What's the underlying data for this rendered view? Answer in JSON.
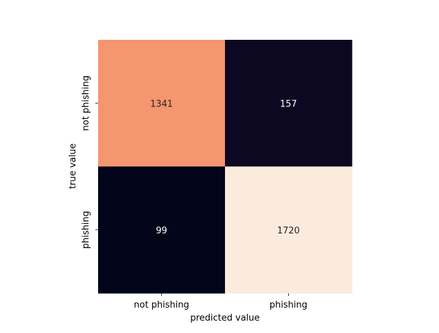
{
  "chart_data": {
    "type": "heatmap",
    "title": "",
    "xlabel": "predicted value",
    "ylabel": "true value",
    "x_categories": [
      "not phishing",
      "phishing"
    ],
    "y_categories": [
      "not phishing",
      "phishing"
    ],
    "values": [
      [
        1341,
        157
      ],
      [
        99,
        1720
      ]
    ],
    "vmin": 99,
    "vmax": 1720,
    "colormap": "rocket",
    "colorbar": false,
    "grid": false
  }
}
